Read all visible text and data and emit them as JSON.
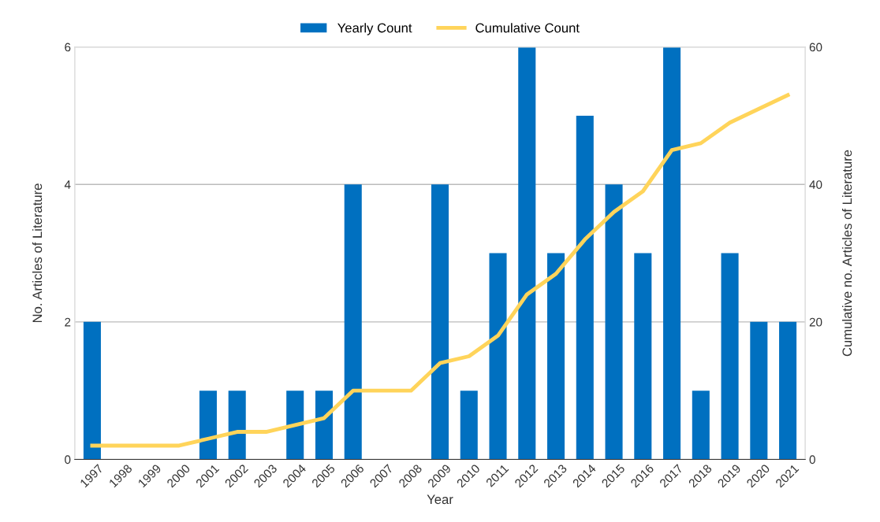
{
  "chart_data": {
    "type": "bar",
    "xlabel": "Year",
    "ylabel": "No. Articles of Literature",
    "y2label": "Cumulative no. Articles of Literature",
    "categories": [
      "1997",
      "1998",
      "1999",
      "2000",
      "2001",
      "2002",
      "2003",
      "2004",
      "2005",
      "2006",
      "2007",
      "2008",
      "2009",
      "2010",
      "2011",
      "2012",
      "2013",
      "2014",
      "2015",
      "2016",
      "2017",
      "2018",
      "2019",
      "2020",
      "2021"
    ],
    "series": [
      {
        "name": "Yearly Count",
        "color": "#0070c0",
        "values": [
          2,
          0,
          0,
          0,
          1,
          1,
          0,
          1,
          1,
          4,
          0,
          0,
          4,
          1,
          3,
          6,
          3,
          5,
          4,
          3,
          6,
          1,
          3,
          2,
          2
        ]
      },
      {
        "name": "Cumulative Count",
        "type": "line",
        "axis": "y2",
        "color": "#ffd45a",
        "values": [
          2,
          2,
          2,
          2,
          3,
          4,
          4,
          5,
          6,
          10,
          10,
          10,
          14,
          15,
          18,
          24,
          27,
          32,
          36,
          39,
          45,
          46,
          49,
          51,
          53
        ]
      }
    ],
    "ylim": [
      0,
      6
    ],
    "yticks": [
      0,
      2,
      4,
      6
    ],
    "y2lim": [
      0,
      60
    ],
    "y2ticks": [
      0,
      20,
      40,
      60
    ],
    "grid": "y",
    "legend": "top"
  }
}
